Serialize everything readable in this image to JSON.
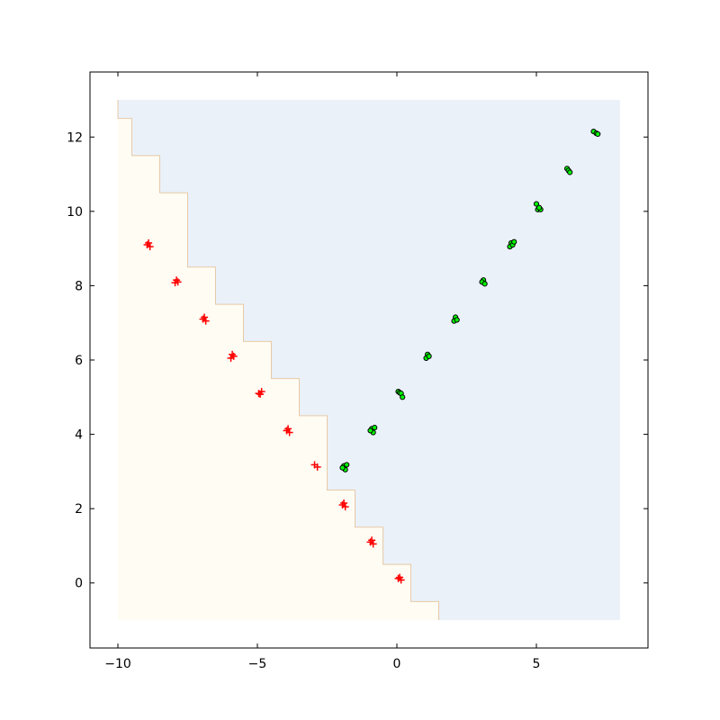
{
  "chart_data": {
    "type": "scatter",
    "title": "",
    "xlabel": "",
    "ylabel": "",
    "xlim": [
      -11,
      9
    ],
    "ylim": [
      -1.75,
      13.75
    ],
    "grid": false,
    "x_ticks": [
      -10,
      -5,
      0,
      5
    ],
    "x_tick_labels": [
      "−10",
      "−5",
      "0",
      "5"
    ],
    "y_ticks": [
      0,
      2,
      4,
      6,
      8,
      10,
      12
    ],
    "y_tick_labels": [
      "0",
      "2",
      "4",
      "6",
      "8",
      "10",
      "12"
    ],
    "decision_regions": {
      "extent": {
        "x": [
          -10,
          8
        ],
        "y": [
          -1,
          13
        ]
      },
      "colors": {
        "class_plus": "#fffcf3",
        "class_dot": "#eaf1f9",
        "boundary": "#e8c9a8"
      },
      "boundary_steps": [
        {
          "y": [
            12.5,
            13
          ],
          "x": -10.0
        },
        {
          "y": [
            11.5,
            12.5
          ],
          "x": -9.5
        },
        {
          "y": [
            10.5,
            11.5
          ],
          "x": -8.5
        },
        {
          "y": [
            8.5,
            10.5
          ],
          "x": -7.5
        },
        {
          "y": [
            7.5,
            8.5
          ],
          "x": -6.5
        },
        {
          "y": [
            6.5,
            7.5
          ],
          "x": -5.5
        },
        {
          "y": [
            5.5,
            6.5
          ],
          "x": -4.5
        },
        {
          "y": [
            4.5,
            5.5
          ],
          "x": -3.5
        },
        {
          "y": [
            2.5,
            4.5
          ],
          "x": -2.5
        },
        {
          "y": [
            1.5,
            2.5
          ],
          "x": -1.5
        },
        {
          "y": [
            0.5,
            1.5
          ],
          "x": -0.5
        },
        {
          "y": [
            -0.5,
            0.5
          ],
          "x": 0.5
        },
        {
          "y": [
            -1,
            -0.5
          ],
          "x": 1.5
        }
      ]
    },
    "series": [
      {
        "marker": "plus",
        "color": "#ff0000",
        "points": [
          [
            -8.9,
            9.15
          ],
          [
            -8.85,
            9.05
          ],
          [
            -8.95,
            9.1
          ],
          [
            -7.9,
            8.15
          ],
          [
            -7.95,
            8.08
          ],
          [
            -7.85,
            8.1
          ],
          [
            -6.9,
            7.15
          ],
          [
            -6.85,
            7.05
          ],
          [
            -6.95,
            7.1
          ],
          [
            -5.9,
            6.15
          ],
          [
            -5.95,
            6.05
          ],
          [
            -5.85,
            6.1
          ],
          [
            -4.95,
            5.1
          ],
          [
            -4.85,
            5.15
          ],
          [
            -4.9,
            5.08
          ],
          [
            -3.9,
            4.15
          ],
          [
            -3.85,
            4.05
          ],
          [
            -3.95,
            4.1
          ],
          [
            -2.95,
            3.18
          ],
          [
            -2.85,
            3.12
          ],
          [
            -1.9,
            2.15
          ],
          [
            -1.85,
            2.05
          ],
          [
            -1.95,
            2.1
          ],
          [
            -0.9,
            1.15
          ],
          [
            -0.85,
            1.05
          ],
          [
            -0.95,
            1.1
          ],
          [
            0.1,
            0.15
          ],
          [
            0.15,
            0.08
          ],
          [
            0.05,
            0.12
          ]
        ]
      },
      {
        "marker": "dot",
        "color": "#00ff00",
        "points": [
          [
            -1.9,
            3.15
          ],
          [
            -1.85,
            3.05
          ],
          [
            -1.95,
            3.1
          ],
          [
            -1.8,
            3.18
          ],
          [
            -0.9,
            4.15
          ],
          [
            -0.85,
            4.05
          ],
          [
            -0.95,
            4.1
          ],
          [
            -0.8,
            4.18
          ],
          [
            0.05,
            5.15
          ],
          [
            0.1,
            5.12
          ],
          [
            0.15,
            5.1
          ],
          [
            0.2,
            5.0
          ],
          [
            1.1,
            6.15
          ],
          [
            1.05,
            6.05
          ],
          [
            1.15,
            6.1
          ],
          [
            2.1,
            7.15
          ],
          [
            2.05,
            7.05
          ],
          [
            2.15,
            7.08
          ],
          [
            3.1,
            8.15
          ],
          [
            3.05,
            8.1
          ],
          [
            3.15,
            8.05
          ],
          [
            4.1,
            9.15
          ],
          [
            4.05,
            9.05
          ],
          [
            4.15,
            9.1
          ],
          [
            4.2,
            9.18
          ],
          [
            5.0,
            10.2
          ],
          [
            5.05,
            10.05
          ],
          [
            5.15,
            10.05
          ],
          [
            5.1,
            10.1
          ],
          [
            6.1,
            11.15
          ],
          [
            6.15,
            11.1
          ],
          [
            6.2,
            11.05
          ],
          [
            7.05,
            12.15
          ],
          [
            7.15,
            12.1
          ],
          [
            7.2,
            12.08
          ]
        ]
      }
    ]
  }
}
